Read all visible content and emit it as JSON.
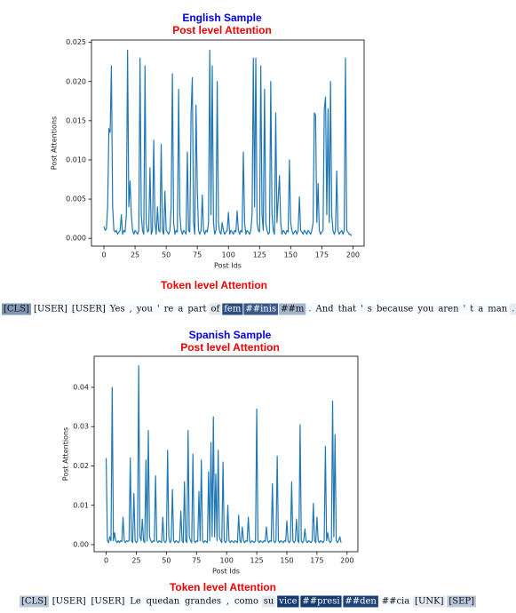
{
  "chart_data": [
    {
      "type": "line",
      "title": "English Sample",
      "subtitle": "Post level Attention",
      "xlabel": "Post Ids",
      "ylabel": "Post Attentions",
      "color": "#1f77b4",
      "xlim": [
        -10,
        209
      ],
      "ylim": [
        -0.001,
        0.0253
      ],
      "xticks": [
        0,
        25,
        50,
        75,
        100,
        125,
        150,
        175,
        200
      ],
      "yticks": [
        {
          "value": 0,
          "label": "0.000"
        },
        0.005,
        {
          "value": 0.01,
          "label": "0.010"
        },
        0.015,
        {
          "value": 0.02,
          "label": "0.020"
        },
        0.025
      ],
      "x": [
        0,
        1,
        2,
        3,
        4,
        5,
        6,
        7,
        8,
        9,
        10,
        11,
        12,
        13,
        14,
        15,
        16,
        17,
        18,
        19,
        20,
        21,
        22,
        23,
        24,
        25,
        26,
        27,
        28,
        29,
        30,
        31,
        32,
        33,
        34,
        35,
        36,
        37,
        38,
        39,
        40,
        41,
        42,
        43,
        44,
        45,
        46,
        47,
        48,
        49,
        50,
        51,
        52,
        53,
        54,
        55,
        56,
        57,
        58,
        59,
        60,
        61,
        62,
        63,
        64,
        65,
        66,
        67,
        68,
        69,
        70,
        71,
        72,
        73,
        74,
        75,
        76,
        77,
        78,
        79,
        80,
        81,
        82,
        83,
        84,
        85,
        86,
        87,
        88,
        89,
        90,
        91,
        92,
        93,
        94,
        95,
        96,
        97,
        98,
        99,
        100,
        101,
        102,
        103,
        104,
        105,
        106,
        107,
        108,
        109,
        110,
        111,
        112,
        113,
        114,
        115,
        116,
        117,
        118,
        119,
        120,
        121,
        122,
        123,
        124,
        125,
        126,
        127,
        128,
        129,
        130,
        131,
        132,
        133,
        134,
        135,
        136,
        137,
        138,
        139,
        140,
        141,
        142,
        143,
        144,
        145,
        146,
        147,
        148,
        149,
        150,
        151,
        152,
        153,
        154,
        155,
        156,
        157,
        158,
        159,
        160,
        161,
        162,
        163,
        164,
        165,
        166,
        167,
        168,
        169,
        170,
        171,
        172,
        173,
        174,
        175,
        176,
        177,
        178,
        179,
        180,
        181,
        182,
        183,
        184,
        185,
        186,
        187,
        188,
        189,
        190,
        191,
        192,
        193,
        194,
        195,
        196,
        197,
        198,
        199
      ],
      "values": [
        0.0015,
        0.001,
        0.0012,
        0.004,
        0.014,
        0.0135,
        0.022,
        0.004,
        0.001,
        0.0008,
        0.001,
        0.0005,
        0.0008,
        0.001,
        0.003,
        0.0005,
        0.001,
        0.0008,
        0.003,
        0.024,
        0.004,
        0.0073,
        0.003,
        0.001,
        0.0005,
        0.001,
        0.0008,
        0.0005,
        0.001,
        0.023,
        0.003,
        0.001,
        0.0005,
        0.022,
        0.002,
        0.0008,
        0.001,
        0.009,
        0.0005,
        0.001,
        0.0125,
        0.002,
        0.0005,
        0.004,
        0.001,
        0.0008,
        0.012,
        0.001,
        0.0005,
        0.006,
        0.001,
        0.0008,
        0.0005,
        0.001,
        0.004,
        0.021,
        0.002,
        0.0005,
        0.001,
        0.0008,
        0.019,
        0.003,
        0.001,
        0.0005,
        0.001,
        0.0008,
        0.0005,
        0.011,
        0.001,
        0.0008,
        0.016,
        0.0205,
        0.002,
        0.0005,
        0.017,
        0.006,
        0.001,
        0.0005,
        0.001,
        0.0055,
        0.001,
        0.0005,
        0.001,
        0.0008,
        0.002,
        0.024,
        0.003,
        0.022,
        0.002,
        0.0005,
        0.001,
        0.02,
        0.002,
        0.0008,
        0.0005,
        0.002,
        0.001,
        0.0005,
        0.0008,
        0.001,
        0.0033,
        0.0005,
        0.001,
        0.0008,
        0.0005,
        0.001,
        0.0008,
        0.0035,
        0.001,
        0.0005,
        0.001,
        0.0008,
        0.011,
        0.002,
        0.0005,
        0.001,
        0.0008,
        0.0005,
        0.001,
        0.003,
        0.023,
        0.004,
        0.023,
        0.002,
        0.001,
        0.0008,
        0.022,
        0.003,
        0.001,
        0.019,
        0.002,
        0.001,
        0.0005,
        0.0008,
        0.02,
        0.003,
        0.001,
        0.0005,
        0.016,
        0.002,
        0.005,
        0.008,
        0.002,
        0.0005,
        0.001,
        0.0008,
        0.0005,
        0.001,
        0.0008,
        0.01,
        0.002,
        0.001,
        0.0005,
        0.0008,
        0.001,
        0.0005,
        0.001,
        0.0053,
        0.001,
        0.0008,
        0.0005,
        0.001,
        0.0008,
        0.0005,
        0.001,
        0.0008,
        0.0005,
        0.001,
        0.002,
        0.016,
        0.0157,
        0.002,
        0.007,
        0.001,
        0.0005,
        0.0008,
        0.001,
        0.0165,
        0.018,
        0.003,
        0.0165,
        0.002,
        0.02,
        0.003,
        0.001,
        0.0005,
        0.001,
        0.0086,
        0.001,
        0.0005,
        0.0008,
        0.001,
        0.0005,
        0.001,
        0.023,
        0.001,
        0.0008,
        0.0005,
        0.0005,
        0.0003
      ],
      "token_attention": {
        "title": "Token level Attention",
        "tokens": [
          "[CLS]",
          "[USER]",
          "[USER]",
          "Yes",
          ",",
          "you",
          "'",
          "re",
          "a",
          "part",
          "of",
          "fem",
          "##inis",
          "##m",
          ".",
          "And",
          "that",
          "'",
          "s",
          "because",
          "you",
          "aren",
          "'",
          "t",
          "a",
          "man",
          "."
        ],
        "weights": [
          0.5,
          0,
          0,
          0,
          0,
          0,
          0,
          0,
          0,
          0,
          0.1,
          0.85,
          0.8,
          0.35,
          0,
          0,
          0,
          0,
          0,
          0,
          0,
          0,
          0,
          0,
          0,
          0,
          0.08
        ]
      }
    },
    {
      "type": "line",
      "title": "Spanish Sample",
      "subtitle": "Post level Attention",
      "xlabel": "Post Ids",
      "ylabel": "Post Attentions",
      "color": "#1f77b4",
      "xlim": [
        -10,
        209
      ],
      "ylim": [
        -0.0018,
        0.0479
      ],
      "xticks": [
        0,
        25,
        50,
        75,
        100,
        125,
        150,
        175,
        200
      ],
      "yticks": [
        {
          "value": 0,
          "label": "0.00"
        },
        0.01,
        0.02,
        0.03,
        0.04
      ],
      "x": [
        0,
        1,
        2,
        3,
        4,
        5,
        6,
        7,
        8,
        9,
        10,
        11,
        12,
        13,
        14,
        15,
        16,
        17,
        18,
        19,
        20,
        21,
        22,
        23,
        24,
        25,
        26,
        27,
        28,
        29,
        30,
        31,
        32,
        33,
        34,
        35,
        36,
        37,
        38,
        39,
        40,
        41,
        42,
        43,
        44,
        45,
        46,
        47,
        48,
        49,
        50,
        51,
        52,
        53,
        54,
        55,
        56,
        57,
        58,
        59,
        60,
        61,
        62,
        63,
        64,
        65,
        66,
        67,
        68,
        69,
        70,
        71,
        72,
        73,
        74,
        75,
        76,
        77,
        78,
        79,
        80,
        81,
        82,
        83,
        84,
        85,
        86,
        87,
        88,
        89,
        90,
        91,
        92,
        93,
        94,
        95,
        96,
        97,
        98,
        99,
        100,
        101,
        102,
        103,
        104,
        105,
        106,
        107,
        108,
        109,
        110,
        111,
        112,
        113,
        114,
        115,
        116,
        117,
        118,
        119,
        120,
        121,
        122,
        123,
        124,
        125,
        126,
        127,
        128,
        129,
        130,
        131,
        132,
        133,
        134,
        135,
        136,
        137,
        138,
        139,
        140,
        141,
        142,
        143,
        144,
        145,
        146,
        147,
        148,
        149,
        150,
        151,
        152,
        153,
        154,
        155,
        156,
        157,
        158,
        159,
        160,
        161,
        162,
        163,
        164,
        165,
        166,
        167,
        168,
        169,
        170,
        171,
        172,
        173,
        174,
        175,
        176,
        177,
        178,
        179,
        180,
        181,
        182,
        183,
        184,
        185,
        186,
        187,
        188,
        189,
        190,
        191,
        192,
        193,
        194,
        195
      ],
      "values": [
        0.022,
        0.001,
        0.0005,
        0.002,
        0.001,
        0.04,
        0.001,
        0.003,
        0.001,
        0.0005,
        0.001,
        0.0005,
        0.001,
        0.0008,
        0.007,
        0.001,
        0.0005,
        0.001,
        0.0008,
        0.001,
        0.022,
        0.001,
        0.0005,
        0.013,
        0.001,
        0.0005,
        0.001,
        0.0455,
        0.002,
        0.001,
        0.0065,
        0.001,
        0.0005,
        0.0215,
        0.001,
        0.029,
        0.002,
        0.001,
        0.0005,
        0.001,
        0.0008,
        0.0175,
        0.001,
        0.0005,
        0.001,
        0.0008,
        0.0005,
        0.007,
        0.001,
        0.0005,
        0.001,
        0.024,
        0.002,
        0.0005,
        0.001,
        0.014,
        0.001,
        0.0005,
        0.001,
        0.0008,
        0.0005,
        0.001,
        0.0085,
        0.001,
        0.0005,
        0.016,
        0.001,
        0.0005,
        0.029,
        0.002,
        0.001,
        0.0005,
        0.023,
        0.001,
        0.0005,
        0.001,
        0.0008,
        0.0135,
        0.001,
        0.0215,
        0.001,
        0.0005,
        0.001,
        0.0008,
        0.0005,
        0.0185,
        0.001,
        0.026,
        0.002,
        0.0325,
        0.002,
        0.018,
        0.001,
        0.024,
        0.002,
        0.001,
        0.0005,
        0.021,
        0.001,
        0.0005,
        0.001,
        0.01,
        0.001,
        0.0005,
        0.001,
        0.0008,
        0.0005,
        0.001,
        0.0008,
        0.0005,
        0.0075,
        0.001,
        0.0005,
        0.0045,
        0.001,
        0.0005,
        0.001,
        0.0008,
        0.007,
        0.001,
        0.0005,
        0.001,
        0.0008,
        0.0005,
        0.001,
        0.0345,
        0.001,
        0.0005,
        0.001,
        0.0008,
        0.0005,
        0.001,
        0.0008,
        0.0045,
        0.001,
        0.0005,
        0.001,
        0.0008,
        0.0155,
        0.001,
        0.0005,
        0.001,
        0.0225,
        0.001,
        0.0005,
        0.001,
        0.0008,
        0.0005,
        0.001,
        0.0008,
        0.006,
        0.001,
        0.0005,
        0.001,
        0.016,
        0.001,
        0.0005,
        0.001,
        0.0065,
        0.001,
        0.0005,
        0.0305,
        0.001,
        0.0005,
        0.001,
        0.004,
        0.001,
        0.0005,
        0.001,
        0.0008,
        0.0005,
        0.001,
        0.0105,
        0.001,
        0.0005,
        0.007,
        0.001,
        0.0005,
        0.001,
        0.0008,
        0.0005,
        0.001,
        0.025,
        0.001,
        0.003,
        0.001,
        0.0005,
        0.001,
        0.0365,
        0.002,
        0.028,
        0.001,
        0.0005,
        0.001,
        0.002,
        0.0005
      ],
      "token_attention": {
        "title": "Token level Attention",
        "tokens": [
          "[CLS]",
          "[USER]",
          "[USER]",
          "Le",
          "quedan",
          "grandes",
          ",",
          "como",
          "su",
          "vice",
          "##presi",
          "##den",
          "##cia",
          "[UNK]",
          "[SEP]"
        ],
        "weights": [
          0.25,
          0,
          0,
          0,
          0,
          0,
          0,
          0,
          0.08,
          0.95,
          0.95,
          0.9,
          0,
          0.08,
          0.25
        ]
      }
    }
  ]
}
